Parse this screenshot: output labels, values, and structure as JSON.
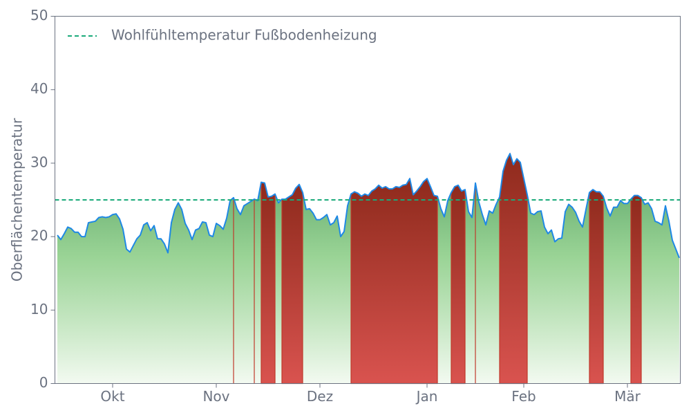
{
  "chart_data": {
    "type": "line",
    "y_label": "Oberflächentemperatur",
    "categories": [
      null,
      null,
      null,
      null,
      null,
      null,
      null,
      null,
      null,
      null,
      null,
      null,
      null,
      null,
      null,
      null,
      "Okt",
      null,
      null,
      null,
      null,
      null,
      null,
      null,
      null,
      null,
      null,
      null,
      null,
      null,
      null,
      null,
      null,
      null,
      null,
      null,
      null,
      null,
      null,
      null,
      null,
      null,
      null,
      null,
      null,
      null,
      "Nov",
      null,
      null,
      null,
      null,
      null,
      null,
      null,
      null,
      null,
      null,
      null,
      null,
      null,
      null,
      null,
      null,
      null,
      null,
      null,
      null,
      null,
      null,
      null,
      null,
      null,
      null,
      null,
      null,
      null,
      "Dez",
      null,
      null,
      null,
      null,
      null,
      null,
      null,
      null,
      null,
      null,
      null,
      null,
      null,
      null,
      null,
      null,
      null,
      null,
      null,
      null,
      null,
      null,
      null,
      null,
      null,
      null,
      null,
      null,
      null,
      null,
      "Jan",
      null,
      null,
      null,
      null,
      null,
      null,
      null,
      null,
      null,
      null,
      null,
      null,
      null,
      null,
      null,
      null,
      null,
      null,
      null,
      null,
      null,
      null,
      null,
      null,
      null,
      null,
      null,
      "Feb",
      null,
      null,
      null,
      null,
      null,
      null,
      null,
      null,
      null,
      null,
      null,
      null,
      null,
      null,
      null,
      null,
      null,
      null,
      null,
      null,
      null,
      null,
      null,
      null,
      null,
      null,
      null,
      null,
      null,
      "Mär",
      null,
      null,
      null,
      null,
      null,
      null,
      null,
      null,
      null,
      null,
      null,
      null,
      null,
      null,
      null
    ],
    "series": [
      {
        "color": "#1e88e5",
        "values": [
          20.2,
          19.6,
          20.4,
          21.3,
          21.1,
          20.6,
          20.6,
          20.0,
          20.0,
          21.9,
          22.0,
          22.1,
          22.6,
          22.7,
          22.6,
          22.7,
          23.0,
          23.1,
          22.4,
          21.0,
          18.3,
          17.9,
          18.8,
          19.7,
          20.2,
          21.6,
          21.9,
          20.8,
          21.5,
          19.7,
          19.7,
          19.0,
          17.8,
          21.9,
          23.7,
          24.6,
          23.7,
          21.8,
          20.9,
          19.6,
          20.9,
          21.1,
          22.0,
          21.9,
          20.2,
          20.0,
          21.8,
          21.5,
          21.0,
          22.5,
          24.9,
          25.3,
          23.8,
          23.0,
          24.2,
          24.5,
          24.8,
          25.1,
          24.9,
          27.4,
          27.3,
          25.4,
          25.5,
          25.8,
          24.6,
          25.1,
          25.1,
          25.4,
          25.7,
          26.6,
          27.1,
          26.0,
          23.7,
          23.8,
          23.2,
          22.3,
          22.3,
          22.6,
          23.0,
          21.6,
          21.9,
          22.8,
          20.0,
          20.7,
          24.2,
          25.8,
          26.1,
          25.9,
          25.5,
          25.8,
          25.6,
          26.2,
          26.5,
          27.0,
          26.6,
          26.8,
          26.5,
          26.5,
          26.8,
          26.7,
          27.0,
          27.1,
          27.9,
          25.7,
          26.2,
          26.8,
          27.5,
          27.9,
          26.8,
          25.6,
          25.5,
          23.8,
          22.7,
          24.9,
          26.0,
          26.8,
          27.0,
          26.2,
          26.4,
          23.4,
          22.6,
          27.3,
          24.7,
          23.0,
          21.6,
          23.5,
          23.2,
          24.4,
          25.4,
          28.9,
          30.4,
          31.3,
          29.8,
          30.6,
          30.1,
          27.9,
          25.7,
          23.2,
          23.0,
          23.4,
          23.5,
          21.3,
          20.4,
          20.9,
          19.3,
          19.7,
          19.8,
          23.4,
          24.4,
          24.0,
          23.3,
          22.1,
          21.3,
          23.7,
          26.0,
          26.4,
          26.1,
          26.1,
          25.5,
          23.9,
          22.8,
          24.0,
          24.0,
          24.9,
          24.5,
          24.5,
          25.1,
          25.6,
          25.6,
          25.3,
          24.4,
          24.6,
          23.8,
          22.1,
          21.9,
          21.6,
          24.2,
          22.1,
          19.5,
          18.3,
          17.1
        ]
      }
    ],
    "reference_line": {
      "value": 25,
      "label": "Wohlfühltemperatur Fußbodenheizung",
      "color": "#1aaa7a"
    },
    "above_color": "#c0392b",
    "below_color": "#4a9a5a",
    "ylim": [
      0,
      50
    ],
    "yticks": [
      0,
      10,
      20,
      30,
      40,
      50
    ],
    "legend": "upper left",
    "grid": false
  }
}
